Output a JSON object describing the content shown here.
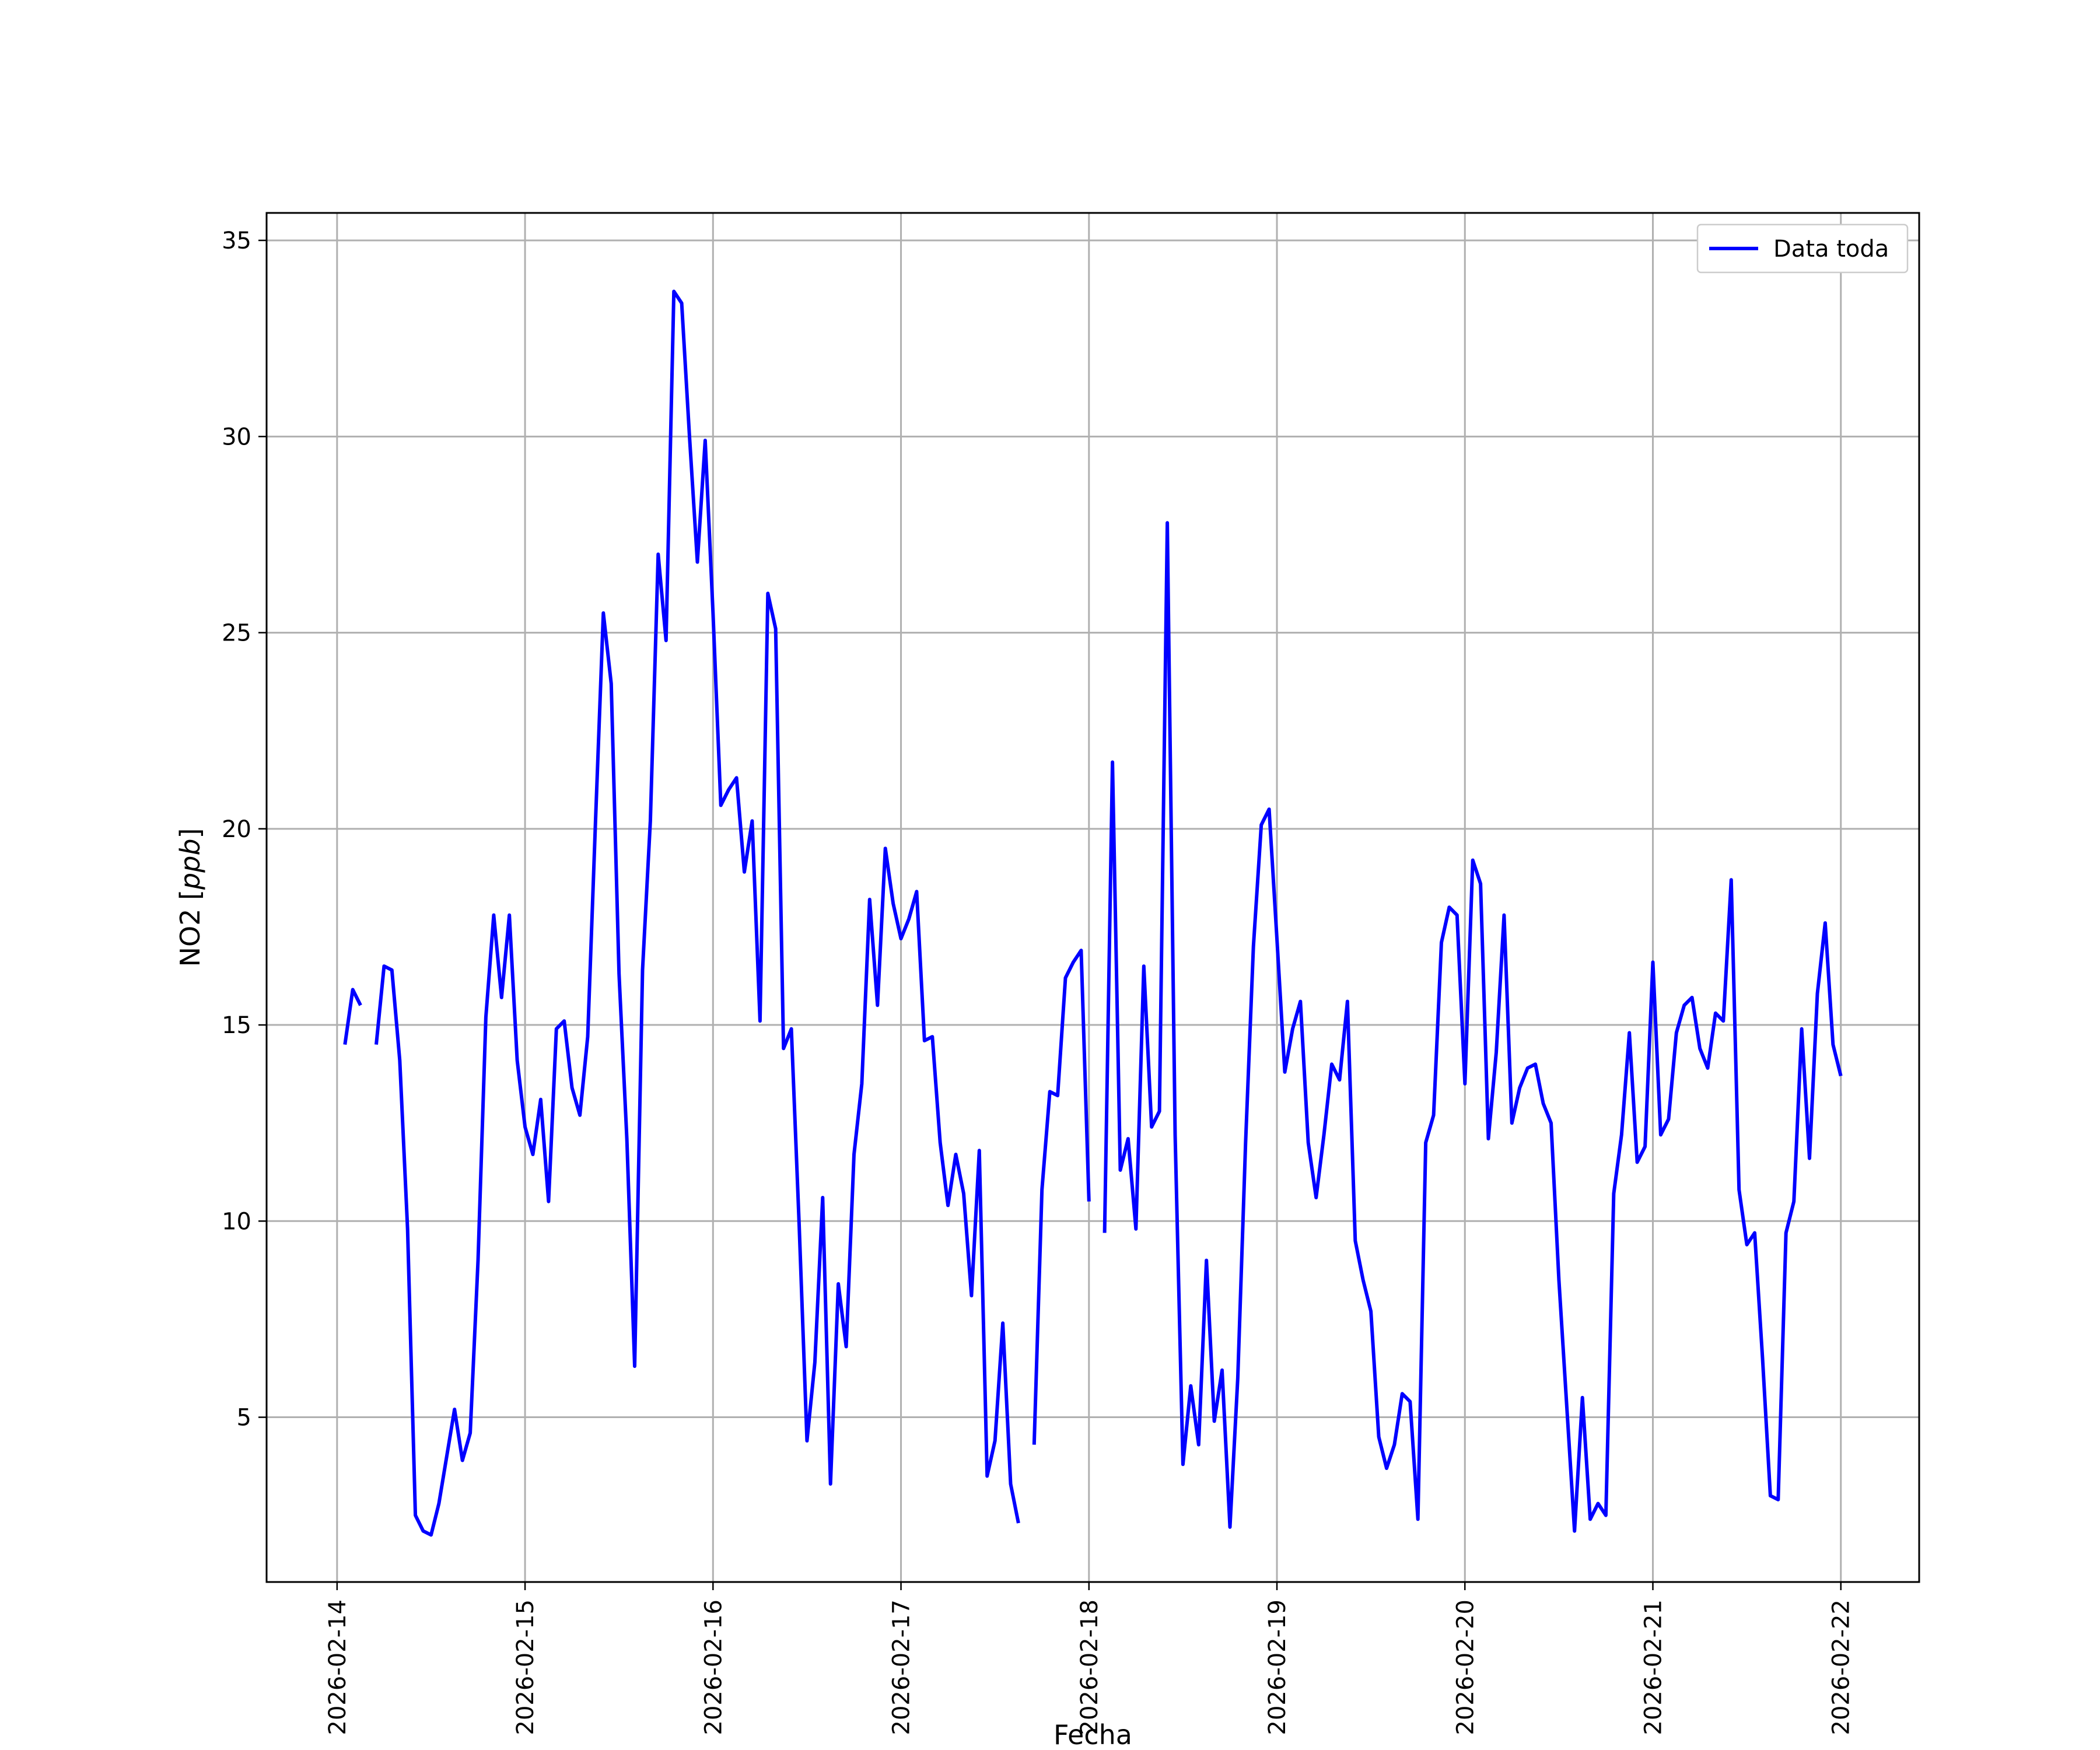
{
  "chart_data": {
    "type": "line",
    "title": "",
    "xlabel": "Fecha",
    "ylabel": "NO2 [ppb]",
    "ylabel_parts": {
      "plain": "NO2 [",
      "italic": "ppb",
      "close": "]"
    },
    "x_ticks": [
      "2026-02-14",
      "2026-02-15",
      "2026-02-16",
      "2026-02-17",
      "2026-02-18",
      "2026-02-19",
      "2026-02-20",
      "2026-02-21",
      "2026-02-22"
    ],
    "y_ticks": [
      5,
      10,
      15,
      20,
      25,
      30,
      35
    ],
    "xlim": [
      "2026-02-13T15:00",
      "2026-02-22T10:00"
    ],
    "ylim": [
      0.8,
      35.7
    ],
    "grid": true,
    "legend_position": "top-right",
    "series": [
      {
        "name": "Data toda",
        "color": "#0000ff",
        "points": [
          [
            "2026-02-14T01:00",
            14.5
          ],
          [
            "2026-02-14T02:00",
            15.9
          ],
          [
            "2026-02-14T03:00",
            15.5
          ],
          [
            "2026-02-14T04:00",
            null
          ],
          [
            "2026-02-14T05:00",
            14.5
          ],
          [
            "2026-02-14T06:00",
            16.5
          ],
          [
            "2026-02-14T07:00",
            16.4
          ],
          [
            "2026-02-14T08:00",
            14.1
          ],
          [
            "2026-02-14T09:00",
            9.8
          ],
          [
            "2026-02-14T10:00",
            2.5
          ],
          [
            "2026-02-14T11:00",
            2.1
          ],
          [
            "2026-02-14T12:00",
            2.0
          ],
          [
            "2026-02-14T13:00",
            2.8
          ],
          [
            "2026-02-14T14:00",
            4.0
          ],
          [
            "2026-02-14T15:00",
            5.2
          ],
          [
            "2026-02-14T16:00",
            3.9
          ],
          [
            "2026-02-14T17:00",
            4.6
          ],
          [
            "2026-02-14T18:00",
            9.0
          ],
          [
            "2026-02-14T19:00",
            15.2
          ],
          [
            "2026-02-14T20:00",
            17.8
          ],
          [
            "2026-02-14T21:00",
            15.7
          ],
          [
            "2026-02-14T22:00",
            17.8
          ],
          [
            "2026-02-14T23:00",
            14.1
          ],
          [
            "2026-02-15T00:00",
            12.4
          ],
          [
            "2026-02-15T01:00",
            11.7
          ],
          [
            "2026-02-15T02:00",
            13.1
          ],
          [
            "2026-02-15T03:00",
            10.5
          ],
          [
            "2026-02-15T04:00",
            14.9
          ],
          [
            "2026-02-15T05:00",
            15.1
          ],
          [
            "2026-02-15T06:00",
            13.4
          ],
          [
            "2026-02-15T07:00",
            12.7
          ],
          [
            "2026-02-15T08:00",
            14.7
          ],
          [
            "2026-02-15T09:00",
            20.2
          ],
          [
            "2026-02-15T10:00",
            25.5
          ],
          [
            "2026-02-15T11:00",
            23.7
          ],
          [
            "2026-02-15T12:00",
            16.3
          ],
          [
            "2026-02-15T13:00",
            12.1
          ],
          [
            "2026-02-15T14:00",
            6.3
          ],
          [
            "2026-02-15T15:00",
            16.4
          ],
          [
            "2026-02-15T16:00",
            20.2
          ],
          [
            "2026-02-15T17:00",
            27.0
          ],
          [
            "2026-02-15T18:00",
            24.8
          ],
          [
            "2026-02-15T19:00",
            33.7
          ],
          [
            "2026-02-15T20:00",
            33.4
          ],
          [
            "2026-02-15T21:00",
            30.0
          ],
          [
            "2026-02-15T22:00",
            26.8
          ],
          [
            "2026-02-15T23:00",
            29.9
          ],
          [
            "2026-02-16T00:00",
            25.5
          ],
          [
            "2026-02-16T01:00",
            20.6
          ],
          [
            "2026-02-16T02:00",
            21.0
          ],
          [
            "2026-02-16T03:00",
            21.3
          ],
          [
            "2026-02-16T04:00",
            18.9
          ],
          [
            "2026-02-16T05:00",
            20.2
          ],
          [
            "2026-02-16T06:00",
            15.1
          ],
          [
            "2026-02-16T07:00",
            26.0
          ],
          [
            "2026-02-16T08:00",
            25.1
          ],
          [
            "2026-02-16T09:00",
            14.4
          ],
          [
            "2026-02-16T10:00",
            14.9
          ],
          [
            "2026-02-16T11:00",
            9.9
          ],
          [
            "2026-02-16T12:00",
            4.4
          ],
          [
            "2026-02-16T13:00",
            6.4
          ],
          [
            "2026-02-16T14:00",
            10.6
          ],
          [
            "2026-02-16T15:00",
            3.3
          ],
          [
            "2026-02-16T16:00",
            8.4
          ],
          [
            "2026-02-16T17:00",
            6.8
          ],
          [
            "2026-02-16T18:00",
            11.7
          ],
          [
            "2026-02-16T19:00",
            13.5
          ],
          [
            "2026-02-16T20:00",
            18.2
          ],
          [
            "2026-02-16T21:00",
            15.5
          ],
          [
            "2026-02-16T22:00",
            19.5
          ],
          [
            "2026-02-16T23:00",
            18.1
          ],
          [
            "2026-02-17T00:00",
            17.2
          ],
          [
            "2026-02-17T01:00",
            17.7
          ],
          [
            "2026-02-17T02:00",
            18.4
          ],
          [
            "2026-02-17T03:00",
            14.6
          ],
          [
            "2026-02-17T04:00",
            14.7
          ],
          [
            "2026-02-17T05:00",
            12.0
          ],
          [
            "2026-02-17T06:00",
            10.4
          ],
          [
            "2026-02-17T07:00",
            11.7
          ],
          [
            "2026-02-17T08:00",
            10.7
          ],
          [
            "2026-02-17T09:00",
            8.1
          ],
          [
            "2026-02-17T10:00",
            11.8
          ],
          [
            "2026-02-17T11:00",
            3.5
          ],
          [
            "2026-02-17T12:00",
            4.4
          ],
          [
            "2026-02-17T13:00",
            7.4
          ],
          [
            "2026-02-17T14:00",
            3.3
          ],
          [
            "2026-02-17T15:00",
            2.3
          ],
          [
            "2026-02-17T16:00",
            null
          ],
          [
            "2026-02-17T17:00",
            4.3
          ],
          [
            "2026-02-17T18:00",
            10.8
          ],
          [
            "2026-02-17T19:00",
            13.3
          ],
          [
            "2026-02-17T20:00",
            13.2
          ],
          [
            "2026-02-17T21:00",
            16.2
          ],
          [
            "2026-02-17T22:00",
            16.6
          ],
          [
            "2026-02-17T23:00",
            16.9
          ],
          [
            "2026-02-18T00:00",
            10.5
          ],
          [
            "2026-02-18T01:00",
            null
          ],
          [
            "2026-02-18T02:00",
            9.7
          ],
          [
            "2026-02-18T03:00",
            21.7
          ],
          [
            "2026-02-18T04:00",
            11.3
          ],
          [
            "2026-02-18T05:00",
            12.1
          ],
          [
            "2026-02-18T06:00",
            9.8
          ],
          [
            "2026-02-18T07:00",
            16.5
          ],
          [
            "2026-02-18T08:00",
            12.4
          ],
          [
            "2026-02-18T09:00",
            12.8
          ],
          [
            "2026-02-18T10:00",
            27.8
          ],
          [
            "2026-02-18T11:00",
            12.2
          ],
          [
            "2026-02-18T12:00",
            3.8
          ],
          [
            "2026-02-18T13:00",
            5.8
          ],
          [
            "2026-02-18T14:00",
            4.3
          ],
          [
            "2026-02-18T15:00",
            9.0
          ],
          [
            "2026-02-18T16:00",
            4.9
          ],
          [
            "2026-02-18T17:00",
            6.2
          ],
          [
            "2026-02-18T18:00",
            2.2
          ],
          [
            "2026-02-18T19:00",
            6.0
          ],
          [
            "2026-02-18T20:00",
            12.0
          ],
          [
            "2026-02-18T21:00",
            17.0
          ],
          [
            "2026-02-18T22:00",
            20.1
          ],
          [
            "2026-02-18T23:00",
            20.5
          ],
          [
            "2026-02-19T00:00",
            17.2
          ],
          [
            "2026-02-19T01:00",
            13.8
          ],
          [
            "2026-02-19T02:00",
            14.9
          ],
          [
            "2026-02-19T03:00",
            15.6
          ],
          [
            "2026-02-19T04:00",
            12.0
          ],
          [
            "2026-02-19T05:00",
            10.6
          ],
          [
            "2026-02-19T06:00",
            12.2
          ],
          [
            "2026-02-19T07:00",
            14.0
          ],
          [
            "2026-02-19T08:00",
            13.6
          ],
          [
            "2026-02-19T09:00",
            15.6
          ],
          [
            "2026-02-19T10:00",
            9.5
          ],
          [
            "2026-02-19T11:00",
            8.5
          ],
          [
            "2026-02-19T12:00",
            7.7
          ],
          [
            "2026-02-19T13:00",
            4.5
          ],
          [
            "2026-02-19T14:00",
            3.7
          ],
          [
            "2026-02-19T15:00",
            4.3
          ],
          [
            "2026-02-19T16:00",
            5.6
          ],
          [
            "2026-02-19T17:00",
            5.4
          ],
          [
            "2026-02-19T18:00",
            2.4
          ],
          [
            "2026-02-19T19:00",
            12.0
          ],
          [
            "2026-02-19T20:00",
            12.7
          ],
          [
            "2026-02-19T21:00",
            17.1
          ],
          [
            "2026-02-19T22:00",
            18.0
          ],
          [
            "2026-02-19T23:00",
            17.8
          ],
          [
            "2026-02-20T00:00",
            13.5
          ],
          [
            "2026-02-20T01:00",
            19.2
          ],
          [
            "2026-02-20T02:00",
            18.6
          ],
          [
            "2026-02-20T03:00",
            12.1
          ],
          [
            "2026-02-20T04:00",
            14.3
          ],
          [
            "2026-02-20T05:00",
            17.8
          ],
          [
            "2026-02-20T06:00",
            12.5
          ],
          [
            "2026-02-20T07:00",
            13.4
          ],
          [
            "2026-02-20T08:00",
            13.9
          ],
          [
            "2026-02-20T09:00",
            14.0
          ],
          [
            "2026-02-20T10:00",
            13.0
          ],
          [
            "2026-02-20T11:00",
            12.5
          ],
          [
            "2026-02-20T12:00",
            8.5
          ],
          [
            "2026-02-20T13:00",
            5.3
          ],
          [
            "2026-02-20T14:00",
            2.1
          ],
          [
            "2026-02-20T15:00",
            5.5
          ],
          [
            "2026-02-20T16:00",
            2.4
          ],
          [
            "2026-02-20T17:00",
            2.8
          ],
          [
            "2026-02-20T18:00",
            2.5
          ],
          [
            "2026-02-20T19:00",
            10.7
          ],
          [
            "2026-02-20T20:00",
            12.2
          ],
          [
            "2026-02-20T21:00",
            14.8
          ],
          [
            "2026-02-20T22:00",
            11.5
          ],
          [
            "2026-02-20T23:00",
            11.9
          ],
          [
            "2026-02-21T00:00",
            16.6
          ],
          [
            "2026-02-21T01:00",
            12.2
          ],
          [
            "2026-02-21T02:00",
            12.6
          ],
          [
            "2026-02-21T03:00",
            14.8
          ],
          [
            "2026-02-21T04:00",
            15.5
          ],
          [
            "2026-02-21T05:00",
            15.7
          ],
          [
            "2026-02-21T06:00",
            14.4
          ],
          [
            "2026-02-21T07:00",
            13.9
          ],
          [
            "2026-02-21T08:00",
            15.3
          ],
          [
            "2026-02-21T09:00",
            15.1
          ],
          [
            "2026-02-21T10:00",
            18.7
          ],
          [
            "2026-02-21T11:00",
            10.8
          ],
          [
            "2026-02-21T12:00",
            9.4
          ],
          [
            "2026-02-21T13:00",
            9.7
          ],
          [
            "2026-02-21T14:00",
            6.5
          ],
          [
            "2026-02-21T15:00",
            3.0
          ],
          [
            "2026-02-21T16:00",
            2.9
          ],
          [
            "2026-02-21T17:00",
            9.7
          ],
          [
            "2026-02-21T18:00",
            10.5
          ],
          [
            "2026-02-21T19:00",
            14.9
          ],
          [
            "2026-02-21T20:00",
            11.6
          ],
          [
            "2026-02-21T21:00",
            15.8
          ],
          [
            "2026-02-21T22:00",
            17.6
          ],
          [
            "2026-02-21T23:00",
            14.5
          ],
          [
            "2026-02-22T00:00",
            13.7
          ]
        ]
      }
    ]
  }
}
